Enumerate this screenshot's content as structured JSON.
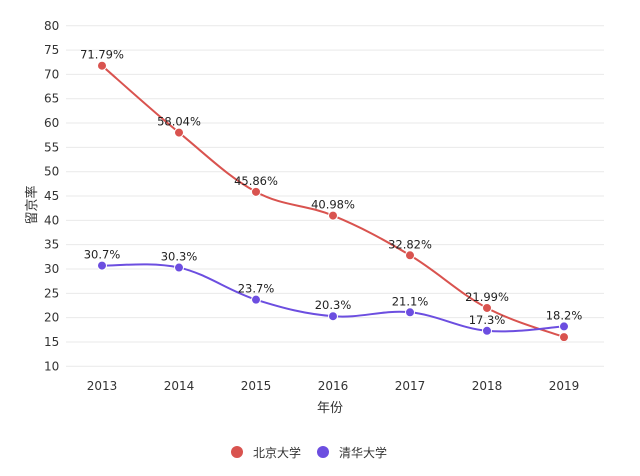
{
  "chart_data": {
    "type": "line",
    "title": "",
    "xlabel": "年份",
    "ylabel": "留京率",
    "ylim": [
      10,
      80
    ],
    "yticks": [
      10,
      15,
      20,
      25,
      30,
      35,
      40,
      45,
      50,
      55,
      60,
      65,
      70,
      75,
      80
    ],
    "grid": true,
    "legend_position": "bottom",
    "categories": [
      "2013",
      "2014",
      "2015",
      "2016",
      "2017",
      "2018",
      "2019"
    ],
    "series": [
      {
        "name": "北京大学",
        "color": "#d9534f",
        "values": [
          71.79,
          58.04,
          45.86,
          40.98,
          32.82,
          21.99,
          16.0
        ],
        "labels": [
          "71.79%",
          "58.04%",
          "45.86%",
          "40.98%",
          "32.82%",
          "21.99%",
          ""
        ]
      },
      {
        "name": "清华大学",
        "color": "#6c4ee0",
        "values": [
          30.7,
          30.3,
          23.7,
          20.3,
          21.1,
          17.3,
          18.2
        ],
        "labels": [
          "30.7%",
          "30.3%",
          "23.7%",
          "20.3%",
          "21.1%",
          "17.3%",
          "18.2%"
        ]
      }
    ]
  }
}
